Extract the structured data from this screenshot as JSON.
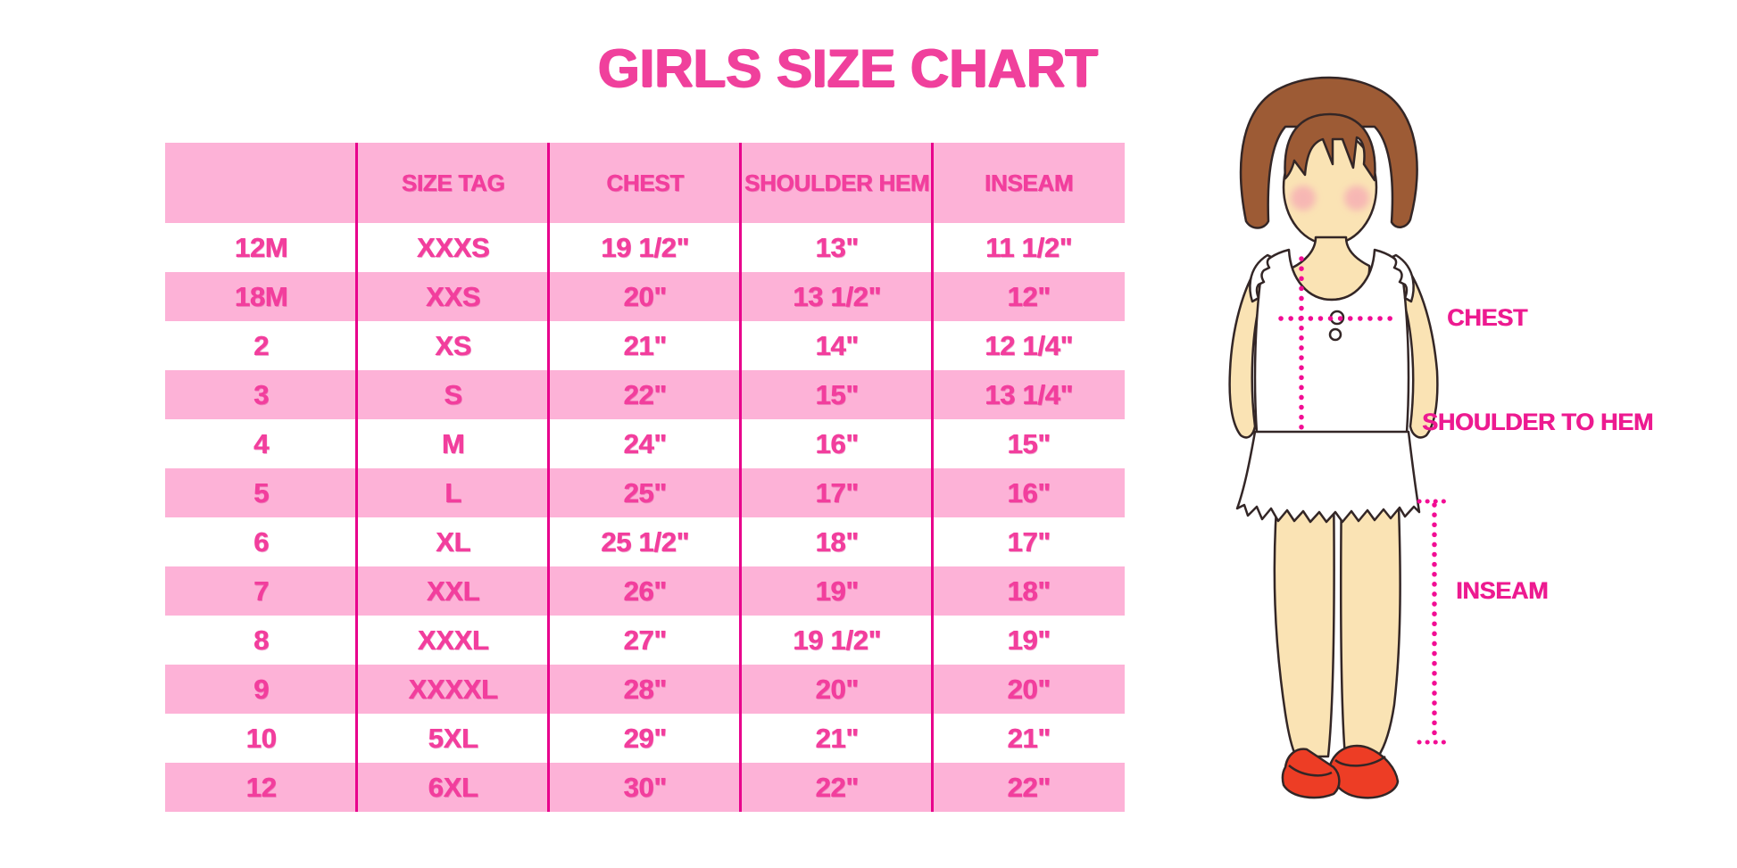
{
  "title": "GIRLS SIZE CHART",
  "colors": {
    "title_pink": "#F0409C",
    "row_pink": "#FDB2D7",
    "divider_pink": "#E8008C",
    "text_pink": "#F23E9D",
    "label_magenta": "#ED1A90",
    "dot_magenta": "#F20D94",
    "hair_brown": "#9D5B35",
    "skin": "#FAE3B4",
    "shoe_red": "#ED3D25"
  },
  "table": {
    "headers": [
      "",
      "SIZE TAG",
      "CHEST",
      "SHOULDER HEM",
      "INSEAM"
    ],
    "rows": [
      [
        "12M",
        "XXXS",
        "19 1/2\"",
        "13\"",
        "11 1/2\""
      ],
      [
        "18M",
        "XXS",
        "20\"",
        "13 1/2\"",
        "12\""
      ],
      [
        "2",
        "XS",
        "21\"",
        "14\"",
        "12 1/4\""
      ],
      [
        "3",
        "S",
        "22\"",
        "15\"",
        "13 1/4\""
      ],
      [
        "4",
        "M",
        "24\"",
        "16\"",
        "15\""
      ],
      [
        "5",
        "L",
        "25\"",
        "17\"",
        "16\""
      ],
      [
        "6",
        "XL",
        "25 1/2\"",
        "18\"",
        "17\""
      ],
      [
        "7",
        "XXL",
        "26\"",
        "19\"",
        "18\""
      ],
      [
        "8",
        "XXXL",
        "27\"",
        "19 1/2\"",
        "19\""
      ],
      [
        "9",
        "XXXXL",
        "28\"",
        "20\"",
        "20\""
      ],
      [
        "10",
        "5XL",
        "29\"",
        "21\"",
        "21\""
      ],
      [
        "12",
        "6XL",
        "30\"",
        "22\"",
        "22\""
      ]
    ]
  },
  "figure_labels": {
    "chest": "CHEST",
    "shoulder_to_hem": "SHOULDER TO HEM",
    "inseam": "INSEAM"
  },
  "chart_data": {
    "type": "table",
    "title": "GIRLS SIZE CHART",
    "columns": [
      "",
      "SIZE TAG",
      "CHEST",
      "SHOULDER HEM",
      "INSEAM"
    ],
    "rows": [
      [
        "12M",
        "XXXS",
        "19 1/2\"",
        "13\"",
        "11 1/2\""
      ],
      [
        "18M",
        "XXS",
        "20\"",
        "13 1/2\"",
        "12\""
      ],
      [
        "2",
        "XS",
        "21\"",
        "14\"",
        "12 1/4\""
      ],
      [
        "3",
        "S",
        "22\"",
        "15\"",
        "13 1/4\""
      ],
      [
        "4",
        "M",
        "24\"",
        "16\"",
        "15\""
      ],
      [
        "5",
        "L",
        "25\"",
        "17\"",
        "16\""
      ],
      [
        "6",
        "XL",
        "25 1/2\"",
        "18\"",
        "17\""
      ],
      [
        "7",
        "XXL",
        "26\"",
        "19\"",
        "18\""
      ],
      [
        "8",
        "XXXL",
        "27\"",
        "19 1/2\"",
        "19\""
      ],
      [
        "9",
        "XXXXL",
        "28\"",
        "20\"",
        "20\""
      ],
      [
        "10",
        "5XL",
        "29\"",
        "21\"",
        "21\""
      ],
      [
        "12",
        "6XL",
        "30\"",
        "22\"",
        "22\""
      ]
    ],
    "annotations": [
      "CHEST",
      "SHOULDER TO HEM",
      "INSEAM"
    ],
    "layout": {
      "stripe_colors": [
        "#FFFFFF",
        "#FDB2D7"
      ],
      "header_color": "#FDB2D7"
    }
  }
}
